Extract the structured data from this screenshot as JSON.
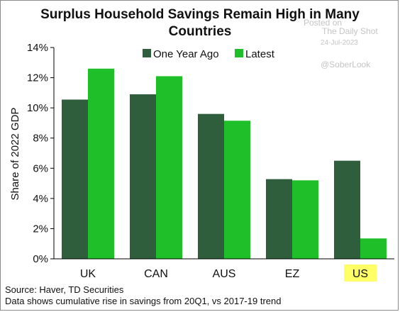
{
  "watermark": {
    "posted": "Posted on",
    "source": "The Daily Shot",
    "date": "24-Jul-2023",
    "handle": "@SoberLook"
  },
  "footnotes": {
    "source": "Source: Haver, TD Securities",
    "note": "Data shows cumulative rise in savings from 20Q1, vs 2017-19 trend"
  },
  "colors": {
    "one_year_ago": "#2e5e3c",
    "latest": "#1fbf2a",
    "highlight": "#ffff66"
  },
  "chart_data": {
    "type": "bar",
    "title": "Surplus Household Savings Remain High in Many Countries",
    "title_lines": [
      "Surplus Household Savings Remain High in Many",
      "Countries"
    ],
    "ylabel": "Share of 2022 GDP",
    "ylim": [
      0,
      14
    ],
    "yticks": [
      "0%",
      "2%",
      "4%",
      "6%",
      "8%",
      "10%",
      "12%",
      "14%"
    ],
    "categories": [
      "UK",
      "CAN",
      "AUS",
      "EZ",
      "US"
    ],
    "highlighted_category": "US",
    "legend_position": "top",
    "grid": false,
    "series": [
      {
        "name": "One Year Ago",
        "values": [
          10.55,
          10.9,
          9.6,
          5.28,
          6.5
        ]
      },
      {
        "name": "Latest",
        "values": [
          12.6,
          12.1,
          9.15,
          5.2,
          1.35
        ]
      }
    ]
  }
}
